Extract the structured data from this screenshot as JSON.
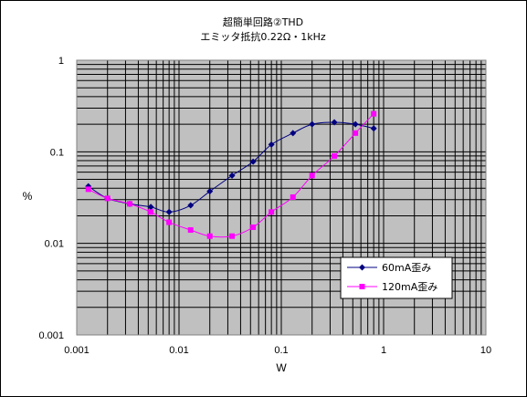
{
  "chart_data": {
    "type": "line",
    "title": "超簡単回路②THD",
    "subtitle": "エミッタ抵抗0.22Ω・1kHz",
    "xlabel": "W",
    "ylabel": "%",
    "xscale": "log",
    "yscale": "log",
    "xlim": [
      0.001,
      10
    ],
    "ylim": [
      0.001,
      1
    ],
    "x_tick_labels": [
      "0.001",
      "0.01",
      "0.1",
      "1",
      "10"
    ],
    "y_tick_labels": [
      "0.001",
      "0.01",
      "0.1",
      "1"
    ],
    "grid": true,
    "legend_position": "bottom-right",
    "series": [
      {
        "name": "60mA歪み",
        "color": "#000080",
        "marker": "diamond",
        "x": [
          0.0013,
          0.002,
          0.0033,
          0.0053,
          0.008,
          0.013,
          0.02,
          0.033,
          0.053,
          0.08,
          0.13,
          0.2,
          0.33,
          0.53,
          0.8
        ],
        "y": [
          0.042,
          0.031,
          0.027,
          0.025,
          0.022,
          0.026,
          0.037,
          0.055,
          0.078,
          0.12,
          0.16,
          0.2,
          0.21,
          0.2,
          0.18
        ]
      },
      {
        "name": "120mA歪み",
        "color": "#ff00ff",
        "marker": "square",
        "x": [
          0.0013,
          0.002,
          0.0033,
          0.0053,
          0.008,
          0.013,
          0.02,
          0.033,
          0.053,
          0.08,
          0.13,
          0.2,
          0.33,
          0.53,
          0.8
        ],
        "y": [
          0.039,
          0.031,
          0.027,
          0.022,
          0.017,
          0.014,
          0.012,
          0.012,
          0.015,
          0.022,
          0.032,
          0.055,
          0.09,
          0.16,
          0.26
        ]
      }
    ]
  }
}
